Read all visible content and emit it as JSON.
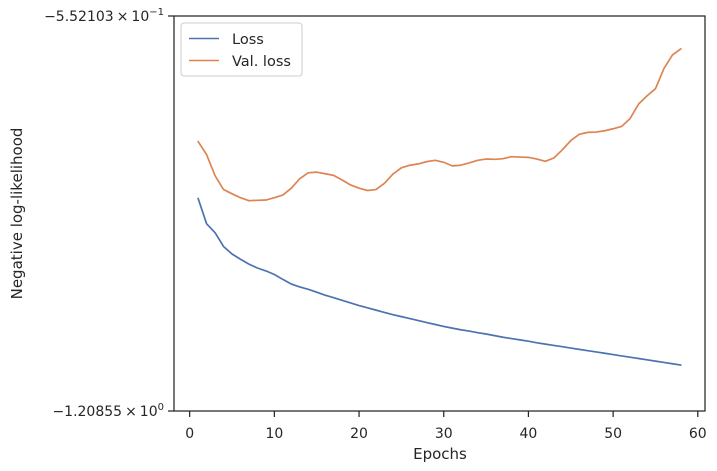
{
  "chart_data": {
    "type": "line",
    "xlabel": "Epochs",
    "ylabel": "Negative log-likelihood",
    "xlim": [
      -1.85,
      60.85
    ],
    "ylim": [
      -1.20855,
      -0.552103
    ],
    "x_ticks": [
      0,
      10,
      20,
      30,
      40,
      50,
      60
    ],
    "x_tick_labels": [
      "0",
      "10",
      "20",
      "30",
      "40",
      "50",
      "60"
    ],
    "y_tick_labels": [
      {
        "value": -0.552103,
        "base": "−5.52103",
        "times": "×",
        "power": "10",
        "exp": "−1"
      },
      {
        "value": -1.20855,
        "base": "−1.20855",
        "times": "×",
        "power": "10",
        "exp": "0"
      }
    ],
    "grid": false,
    "legend_position": "upper left",
    "series": [
      {
        "name": "Loss",
        "color": "#4c72b0",
        "x": [
          1,
          2,
          3,
          4,
          5,
          6,
          7,
          8,
          9,
          10,
          11,
          12,
          13,
          14,
          15,
          16,
          17,
          18,
          19,
          20,
          21,
          22,
          23,
          24,
          25,
          26,
          27,
          28,
          29,
          30,
          31,
          32,
          33,
          34,
          35,
          36,
          37,
          38,
          39,
          40,
          41,
          42,
          43,
          44,
          45,
          46,
          47,
          48,
          49,
          50,
          51,
          52,
          53,
          54,
          55,
          56,
          57,
          58
        ],
        "y": [
          -0.8554,
          -0.8975,
          -0.9122,
          -0.9351,
          -0.9476,
          -0.9563,
          -0.9644,
          -0.9709,
          -0.9757,
          -0.9817,
          -0.9899,
          -0.9975,
          -1.0023,
          -1.0063,
          -1.0111,
          -1.016,
          -1.0203,
          -1.0247,
          -1.029,
          -1.0334,
          -1.0371,
          -1.0409,
          -1.0447,
          -1.0485,
          -1.0517,
          -1.055,
          -1.0583,
          -1.0615,
          -1.0648,
          -1.068,
          -1.0708,
          -1.0735,
          -1.0757,
          -1.0784,
          -1.0806,
          -1.0833,
          -1.086,
          -1.0882,
          -1.0903,
          -1.0925,
          -1.0952,
          -1.0974,
          -1.0996,
          -1.1017,
          -1.1039,
          -1.1061,
          -1.1083,
          -1.1104,
          -1.1126,
          -1.1148,
          -1.117,
          -1.1191,
          -1.1213,
          -1.1235,
          -1.1257,
          -1.1278,
          -1.13,
          -1.1322
        ]
      },
      {
        "name": "Val. loss",
        "color": "#dd8452",
        "x": [
          1,
          2,
          3,
          4,
          5,
          6,
          7,
          8,
          9,
          10,
          11,
          12,
          13,
          14,
          15,
          16,
          17,
          18,
          19,
          20,
          21,
          22,
          23,
          24,
          25,
          26,
          27,
          28,
          29,
          30,
          31,
          32,
          33,
          34,
          35,
          36,
          37,
          38,
          39,
          40,
          41,
          42,
          43,
          44,
          45,
          46,
          47,
          48,
          49,
          50,
          51,
          52,
          53,
          54,
          55,
          56,
          57,
          58
        ],
        "y": [
          -0.7608,
          -0.7825,
          -0.8175,
          -0.8405,
          -0.8476,
          -0.8541,
          -0.859,
          -0.8584,
          -0.8579,
          -0.8541,
          -0.8497,
          -0.8383,
          -0.8225,
          -0.8127,
          -0.8116,
          -0.8143,
          -0.817,
          -0.8246,
          -0.8329,
          -0.8383,
          -0.8421,
          -0.8405,
          -0.8301,
          -0.8148,
          -0.8045,
          -0.8001,
          -0.7979,
          -0.7941,
          -0.7919,
          -0.7952,
          -0.8012,
          -0.8001,
          -0.7963,
          -0.7919,
          -0.7898,
          -0.7903,
          -0.7892,
          -0.7859,
          -0.7865,
          -0.787,
          -0.7898,
          -0.7936,
          -0.7881,
          -0.7745,
          -0.7592,
          -0.7488,
          -0.7455,
          -0.745,
          -0.7428,
          -0.7395,
          -0.7357,
          -0.7226,
          -0.6986,
          -0.6849,
          -0.6729,
          -0.6395,
          -0.6171,
          -0.6067
        ]
      }
    ]
  }
}
